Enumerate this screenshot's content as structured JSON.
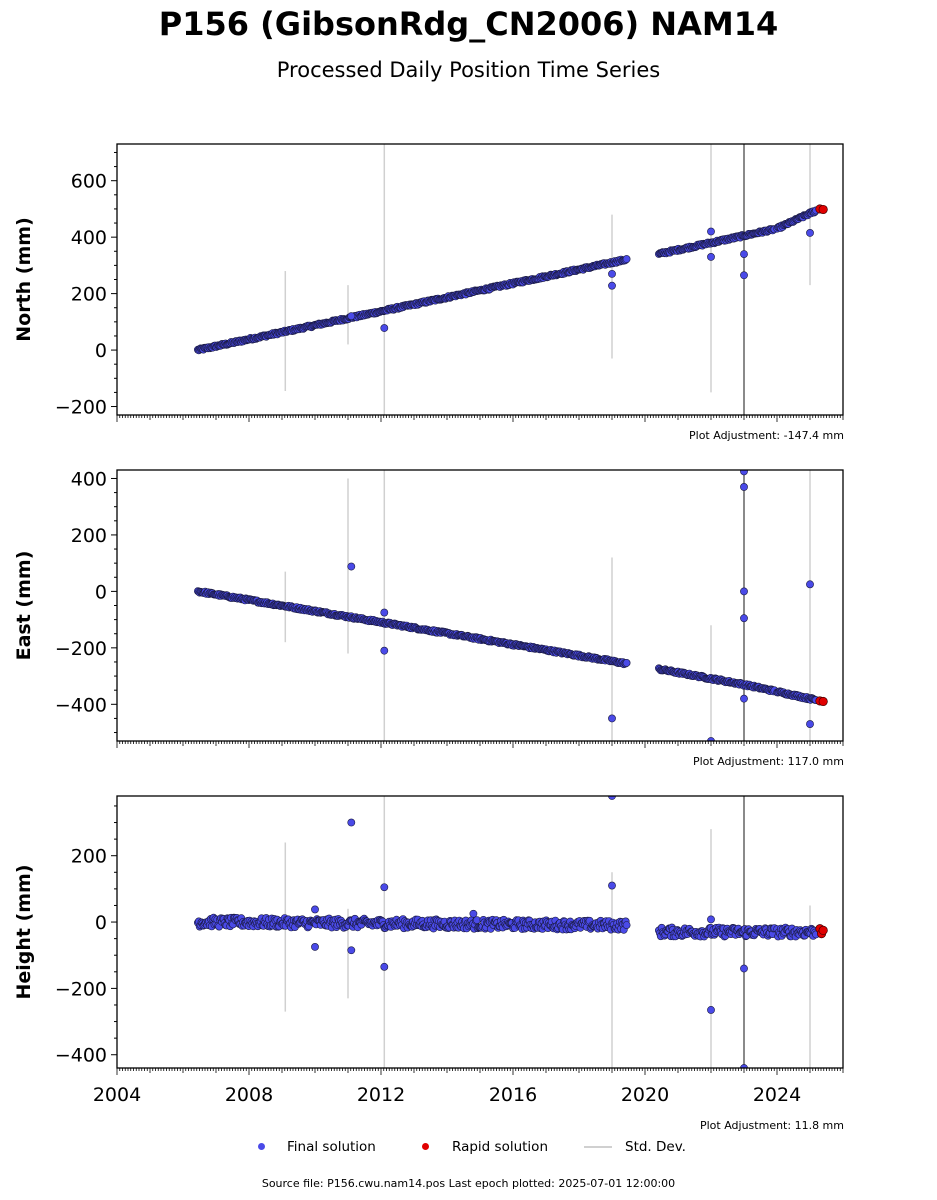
{
  "title": "P156 (GibsonRdg_CN2006) NAM14",
  "subtitle": "Processed Daily Position Time Series",
  "footer": "Source file: P156.cwu.nam14.pos  Last epoch plotted: 2025-07-01 12:00:00",
  "legend": [
    {
      "label": "Final solution",
      "color": "#4a4ae8"
    },
    {
      "label": "Rapid solution",
      "color": "#e00000"
    },
    {
      "label": "Std. Dev.",
      "color": "#d0d0d0"
    }
  ],
  "colors": {
    "final": "#4a4ae8",
    "rapid": "#e00000",
    "stddev": "#d0d0d0"
  },
  "chart_data": [
    {
      "type": "scatter",
      "ylabel": "North (mm)",
      "adjustment": "Plot Adjustment: -147.4 mm",
      "xlim": [
        2004,
        2026
      ],
      "ylim": [
        -230,
        730
      ],
      "yticks": [
        600,
        400,
        200,
        0,
        -200
      ],
      "gaps": [
        [
          2019.45,
          2020.4
        ]
      ],
      "trend": [
        {
          "x": 2006.45,
          "y": 0
        },
        {
          "x": 2019.4,
          "y": 320
        },
        {
          "x": 2020.4,
          "y": 340
        },
        {
          "x": 2023.0,
          "y": 405
        },
        {
          "x": 2024.0,
          "y": 430
        },
        {
          "x": 2025.2,
          "y": 495
        }
      ],
      "noise": 4,
      "outliers": [
        {
          "x": 2011.1,
          "y": 120
        },
        {
          "x": 2012.1,
          "y": 78
        },
        {
          "x": 2019.0,
          "y": 270
        },
        {
          "x": 2019.0,
          "y": 228
        },
        {
          "x": 2022.0,
          "y": 420
        },
        {
          "x": 2022.0,
          "y": 330
        },
        {
          "x": 2023.0,
          "y": 340
        },
        {
          "x": 2023.0,
          "y": 265
        },
        {
          "x": 2025.0,
          "y": 415
        }
      ],
      "rapid": [
        {
          "x": 2025.3,
          "y": 500
        },
        {
          "x": 2025.4,
          "y": 498
        }
      ],
      "stddev": [
        {
          "x": 2009.1,
          "lo": -145,
          "hi": 280
        },
        {
          "x": 2011.0,
          "lo": 20,
          "hi": 230
        },
        {
          "x": 2012.1,
          "lo": -230,
          "hi": 730
        },
        {
          "x": 2019.0,
          "lo": -30,
          "hi": 480
        },
        {
          "x": 2022.0,
          "lo": -150,
          "hi": 730
        },
        {
          "x": 2023.0,
          "lo": -230,
          "hi": 730
        },
        {
          "x": 2025.0,
          "lo": 230,
          "hi": 730
        }
      ]
    },
    {
      "type": "scatter",
      "ylabel": "East (mm)",
      "adjustment": "Plot Adjustment: 117.0 mm",
      "xlim": [
        2004,
        2026
      ],
      "ylim": [
        -530,
        430
      ],
      "yticks": [
        400,
        200,
        0,
        -200,
        -400
      ],
      "gaps": [
        [
          2019.45,
          2020.4
        ]
      ],
      "trend": [
        {
          "x": 2006.45,
          "y": 0
        },
        {
          "x": 2019.4,
          "y": -255
        },
        {
          "x": 2020.4,
          "y": -275
        },
        {
          "x": 2023.0,
          "y": -330
        },
        {
          "x": 2024.0,
          "y": -355
        },
        {
          "x": 2025.2,
          "y": -385
        }
      ],
      "noise": 4,
      "outliers": [
        {
          "x": 2011.1,
          "y": 88
        },
        {
          "x": 2012.1,
          "y": -75
        },
        {
          "x": 2012.1,
          "y": -210
        },
        {
          "x": 2019.0,
          "y": -450
        },
        {
          "x": 2022.0,
          "y": -530
        },
        {
          "x": 2023.0,
          "y": 425
        },
        {
          "x": 2023.0,
          "y": 370
        },
        {
          "x": 2023.0,
          "y": 0
        },
        {
          "x": 2023.0,
          "y": -95
        },
        {
          "x": 2023.0,
          "y": -380
        },
        {
          "x": 2025.0,
          "y": 25
        },
        {
          "x": 2025.0,
          "y": -470
        }
      ],
      "rapid": [
        {
          "x": 2025.3,
          "y": -388
        },
        {
          "x": 2025.4,
          "y": -390
        }
      ],
      "stddev": [
        {
          "x": 2009.1,
          "lo": -180,
          "hi": 70
        },
        {
          "x": 2011.0,
          "lo": -220,
          "hi": 400
        },
        {
          "x": 2012.1,
          "lo": -530,
          "hi": 430
        },
        {
          "x": 2019.0,
          "lo": -530,
          "hi": 120
        },
        {
          "x": 2022.0,
          "lo": -530,
          "hi": -120
        },
        {
          "x": 2023.0,
          "lo": -530,
          "hi": 430
        },
        {
          "x": 2025.0,
          "lo": -530,
          "hi": 430
        }
      ]
    },
    {
      "type": "scatter",
      "ylabel": "Height (mm)",
      "adjustment": "Plot Adjustment: 11.8 mm",
      "xlim": [
        2004,
        2026
      ],
      "ylim": [
        -440,
        380
      ],
      "yticks": [
        200,
        0,
        -200,
        -400
      ],
      "xticks": [
        2004,
        2008,
        2012,
        2016,
        2020,
        2024
      ],
      "gaps": [
        [
          2019.45,
          2020.4
        ]
      ],
      "trend": [
        {
          "x": 2006.45,
          "y": 0
        },
        {
          "x": 2019.4,
          "y": -10
        },
        {
          "x": 2020.4,
          "y": -30
        },
        {
          "x": 2025.2,
          "y": -30
        }
      ],
      "noise": 14,
      "outliers": [
        {
          "x": 2010.0,
          "y": 38
        },
        {
          "x": 2010.0,
          "y": -75
        },
        {
          "x": 2011.1,
          "y": 300
        },
        {
          "x": 2011.1,
          "y": -85
        },
        {
          "x": 2012.1,
          "y": 105
        },
        {
          "x": 2012.1,
          "y": -135
        },
        {
          "x": 2014.8,
          "y": 25
        },
        {
          "x": 2019.0,
          "y": 380
        },
        {
          "x": 2019.0,
          "y": 110
        },
        {
          "x": 2022.0,
          "y": -265
        },
        {
          "x": 2022.0,
          "y": 8
        },
        {
          "x": 2023.0,
          "y": -140
        },
        {
          "x": 2023.0,
          "y": -440
        }
      ],
      "rapid": [
        {
          "x": 2025.3,
          "y": -20
        },
        {
          "x": 2025.35,
          "y": -35
        },
        {
          "x": 2025.4,
          "y": -25
        }
      ],
      "stddev": [
        {
          "x": 2009.1,
          "lo": -270,
          "hi": 240
        },
        {
          "x": 2011.0,
          "lo": -230,
          "hi": 40
        },
        {
          "x": 2012.1,
          "lo": -440,
          "hi": 380
        },
        {
          "x": 2019.0,
          "lo": -440,
          "hi": 150
        },
        {
          "x": 2022.0,
          "lo": -440,
          "hi": 280
        },
        {
          "x": 2023.0,
          "lo": -440,
          "hi": 380
        },
        {
          "x": 2025.0,
          "lo": -440,
          "hi": 50
        }
      ]
    }
  ]
}
